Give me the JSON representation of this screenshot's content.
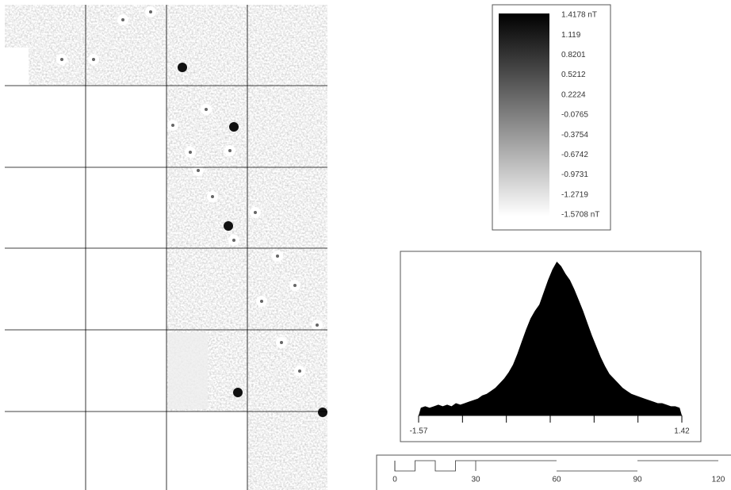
{
  "legend": {
    "labels": [
      "1.4178 nT",
      "1.119",
      "0.8201",
      "0.5212",
      "0.2224",
      "-0.0765",
      "-0.3754",
      "-0.6742",
      "-0.9731",
      "-1.2719",
      "-1.5708 nT"
    ]
  },
  "histogram": {
    "x_labels": [
      "-1.57",
      "1.42"
    ],
    "values": [
      5,
      6,
      5,
      6,
      7,
      6,
      7,
      6,
      8,
      7,
      8,
      9,
      10,
      11,
      13,
      14,
      16,
      18,
      21,
      24,
      28,
      33,
      40,
      48,
      56,
      63,
      68,
      72,
      80,
      88,
      95,
      100,
      97,
      92,
      88,
      82,
      75,
      68,
      60,
      52,
      45,
      38,
      32,
      27,
      24,
      21,
      18,
      16,
      14,
      13,
      12,
      11,
      10,
      9,
      8,
      8,
      7,
      6,
      6,
      5
    ]
  },
  "scale_bar": {
    "ticks": [
      0,
      30,
      60,
      90,
      120
    ]
  }
}
